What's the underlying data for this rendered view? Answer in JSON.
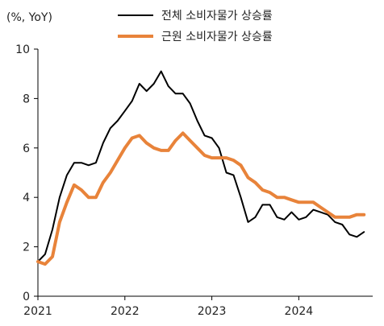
{
  "chart_data": {
    "type": "line",
    "unit_label": "(%, YoY)",
    "xlabel": "",
    "ylabel": "",
    "ylim": [
      0,
      10
    ],
    "yticks": [
      0,
      2,
      4,
      6,
      8,
      10
    ],
    "xlim": [
      2021.0,
      2024.85
    ],
    "xticks": [
      {
        "value": 2021,
        "label": "2021"
      },
      {
        "value": 2022,
        "label": "2022"
      },
      {
        "value": 2023,
        "label": "2023"
      },
      {
        "value": 2024,
        "label": "2024"
      }
    ],
    "grid": false,
    "legend": "top-right",
    "series": [
      {
        "name": "전체 소비자물가 상승률",
        "color": "#000000",
        "width": 2,
        "points": [
          [
            2021.0,
            1.4
          ],
          [
            2021.083,
            1.7
          ],
          [
            2021.167,
            2.7
          ],
          [
            2021.25,
            4.0
          ],
          [
            2021.333,
            4.9
          ],
          [
            2021.417,
            5.4
          ],
          [
            2021.5,
            5.4
          ],
          [
            2021.583,
            5.3
          ],
          [
            2021.667,
            5.4
          ],
          [
            2021.75,
            6.2
          ],
          [
            2021.833,
            6.8
          ],
          [
            2021.917,
            7.1
          ],
          [
            2022.0,
            7.5
          ],
          [
            2022.083,
            7.9
          ],
          [
            2022.167,
            8.6
          ],
          [
            2022.25,
            8.3
          ],
          [
            2022.333,
            8.6
          ],
          [
            2022.417,
            9.1
          ],
          [
            2022.5,
            8.5
          ],
          [
            2022.583,
            8.2
          ],
          [
            2022.667,
            8.2
          ],
          [
            2022.75,
            7.8
          ],
          [
            2022.833,
            7.1
          ],
          [
            2022.917,
            6.5
          ],
          [
            2023.0,
            6.4
          ],
          [
            2023.083,
            6.0
          ],
          [
            2023.167,
            5.0
          ],
          [
            2023.25,
            4.9
          ],
          [
            2023.333,
            4.0
          ],
          [
            2023.417,
            3.0
          ],
          [
            2023.5,
            3.2
          ],
          [
            2023.583,
            3.7
          ],
          [
            2023.667,
            3.7
          ],
          [
            2023.75,
            3.2
          ],
          [
            2023.833,
            3.1
          ],
          [
            2023.917,
            3.4
          ],
          [
            2024.0,
            3.1
          ],
          [
            2024.083,
            3.2
          ],
          [
            2024.167,
            3.5
          ],
          [
            2024.25,
            3.4
          ],
          [
            2024.333,
            3.3
          ],
          [
            2024.417,
            3.0
          ],
          [
            2024.5,
            2.9
          ],
          [
            2024.583,
            2.5
          ],
          [
            2024.667,
            2.4
          ],
          [
            2024.75,
            2.6
          ]
        ]
      },
      {
        "name": "근원 소비자물가 상승률",
        "color": "#E8833A",
        "width": 4,
        "points": [
          [
            2021.0,
            1.4
          ],
          [
            2021.083,
            1.3
          ],
          [
            2021.167,
            1.6
          ],
          [
            2021.25,
            3.0
          ],
          [
            2021.333,
            3.8
          ],
          [
            2021.417,
            4.5
          ],
          [
            2021.5,
            4.3
          ],
          [
            2021.583,
            4.0
          ],
          [
            2021.667,
            4.0
          ],
          [
            2021.75,
            4.6
          ],
          [
            2021.833,
            5.0
          ],
          [
            2021.917,
            5.5
          ],
          [
            2022.0,
            6.0
          ],
          [
            2022.083,
            6.4
          ],
          [
            2022.167,
            6.5
          ],
          [
            2022.25,
            6.2
          ],
          [
            2022.333,
            6.0
          ],
          [
            2022.417,
            5.9
          ],
          [
            2022.5,
            5.9
          ],
          [
            2022.583,
            6.3
          ],
          [
            2022.667,
            6.6
          ],
          [
            2022.75,
            6.3
          ],
          [
            2022.833,
            6.0
          ],
          [
            2022.917,
            5.7
          ],
          [
            2023.0,
            5.6
          ],
          [
            2023.083,
            5.6
          ],
          [
            2023.167,
            5.6
          ],
          [
            2023.25,
            5.5
          ],
          [
            2023.333,
            5.3
          ],
          [
            2023.417,
            4.8
          ],
          [
            2023.5,
            4.6
          ],
          [
            2023.583,
            4.3
          ],
          [
            2023.667,
            4.2
          ],
          [
            2023.75,
            4.0
          ],
          [
            2023.833,
            4.0
          ],
          [
            2023.917,
            3.9
          ],
          [
            2024.0,
            3.8
          ],
          [
            2024.083,
            3.8
          ],
          [
            2024.167,
            3.8
          ],
          [
            2024.25,
            3.6
          ],
          [
            2024.333,
            3.4
          ],
          [
            2024.417,
            3.2
          ],
          [
            2024.5,
            3.2
          ],
          [
            2024.583,
            3.2
          ],
          [
            2024.667,
            3.3
          ],
          [
            2024.75,
            3.3
          ]
        ]
      }
    ]
  }
}
